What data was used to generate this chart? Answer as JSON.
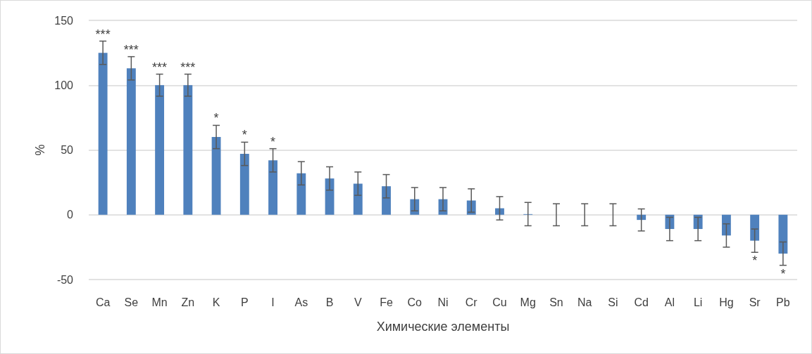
{
  "chart_data": {
    "type": "bar",
    "xlabel": "Химические элементы",
    "ylabel": "%",
    "categories": [
      "Ca",
      "Se",
      "Mn",
      "Zn",
      "K",
      "P",
      "I",
      "As",
      "B",
      "V",
      "Fe",
      "Co",
      "Ni",
      "Cr",
      "Cu",
      "Mg",
      "Sn",
      "Na",
      "Si",
      "Cd",
      "Al",
      "Li",
      "Hg",
      "Sr",
      "Pb"
    ],
    "values": [
      125,
      113,
      100,
      100,
      60,
      47,
      42,
      32,
      28,
      24,
      22,
      12,
      12,
      11,
      5,
      0.5,
      0,
      0,
      0,
      -4,
      -11,
      -11,
      -16,
      -20,
      -30
    ],
    "errors": [
      9,
      9,
      8.5,
      8.5,
      9,
      9,
      9,
      9,
      9,
      9,
      9,
      9,
      9,
      9,
      9,
      9,
      8.5,
      8.5,
      8.5,
      8.5,
      9,
      9,
      9,
      9,
      9
    ],
    "color": "#4f81bd",
    "ylim": [
      -50,
      150
    ],
    "yticks": [
      -50,
      0,
      50,
      100,
      150
    ],
    "grid": "y",
    "annotations": [
      {
        "text": "***",
        "x": "Ca",
        "y": 125
      },
      {
        "text": "***",
        "x": "Se",
        "y": 113
      },
      {
        "text": "***",
        "x": "Mn",
        "y": 100
      },
      {
        "text": "***",
        "x": "Zn",
        "y": 100
      },
      {
        "text": "*",
        "x": "K",
        "y": 60
      },
      {
        "text": "*",
        "x": "P",
        "y": 47
      },
      {
        "text": "*",
        "x": "I",
        "y": 42
      },
      {
        "text": "*",
        "x": "Sr",
        "y": -20
      },
      {
        "text": "*",
        "x": "Pb",
        "y": -30
      }
    ]
  }
}
